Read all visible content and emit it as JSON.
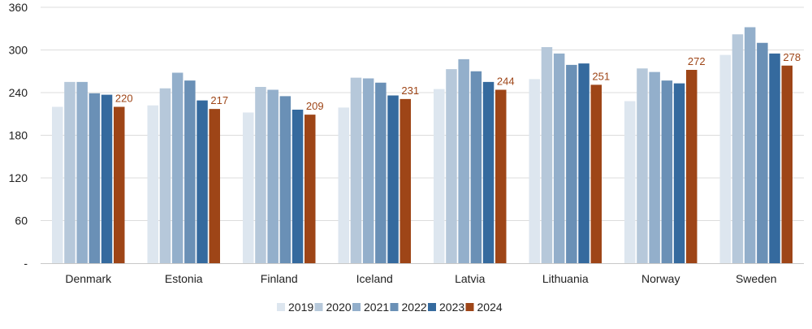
{
  "chart_data": {
    "type": "bar",
    "categories": [
      "Denmark",
      "Estonia",
      "Finland",
      "Iceland",
      "Latvia",
      "Lithuania",
      "Norway",
      "Sweden"
    ],
    "series": [
      {
        "name": "2019",
        "color": "#dde6ef",
        "values": [
          220,
          222,
          212,
          219,
          245,
          259,
          228,
          293
        ]
      },
      {
        "name": "2020",
        "color": "#b6c8da",
        "values": [
          255,
          246,
          248,
          261,
          273,
          304,
          274,
          322
        ]
      },
      {
        "name": "2021",
        "color": "#93afcb",
        "values": [
          255,
          268,
          244,
          260,
          287,
          295,
          269,
          332
        ]
      },
      {
        "name": "2022",
        "color": "#6a90b6",
        "values": [
          239,
          257,
          235,
          254,
          270,
          279,
          257,
          310
        ]
      },
      {
        "name": "2023",
        "color": "#356a9e",
        "values": [
          237,
          229,
          216,
          236,
          255,
          281,
          253,
          295
        ]
      },
      {
        "name": "2024",
        "color": "#9e4517",
        "values": [
          220,
          217,
          209,
          231,
          244,
          251,
          272,
          278
        ]
      }
    ],
    "data_labels": {
      "series": "2024",
      "color": "#9e4517"
    },
    "ylim": [
      0,
      360
    ],
    "yticks": [
      {
        "value": 360,
        "label": "360"
      },
      {
        "value": 300,
        "label": "300"
      },
      {
        "value": 240,
        "label": "240"
      },
      {
        "value": 180,
        "label": "180"
      },
      {
        "value": 120,
        "label": "120"
      },
      {
        "value": 60,
        "label": "60"
      },
      {
        "value": 0,
        "label": "-"
      }
    ],
    "grid": true,
    "legend_position": "bottom",
    "title": "",
    "xlabel": "",
    "ylabel": ""
  }
}
